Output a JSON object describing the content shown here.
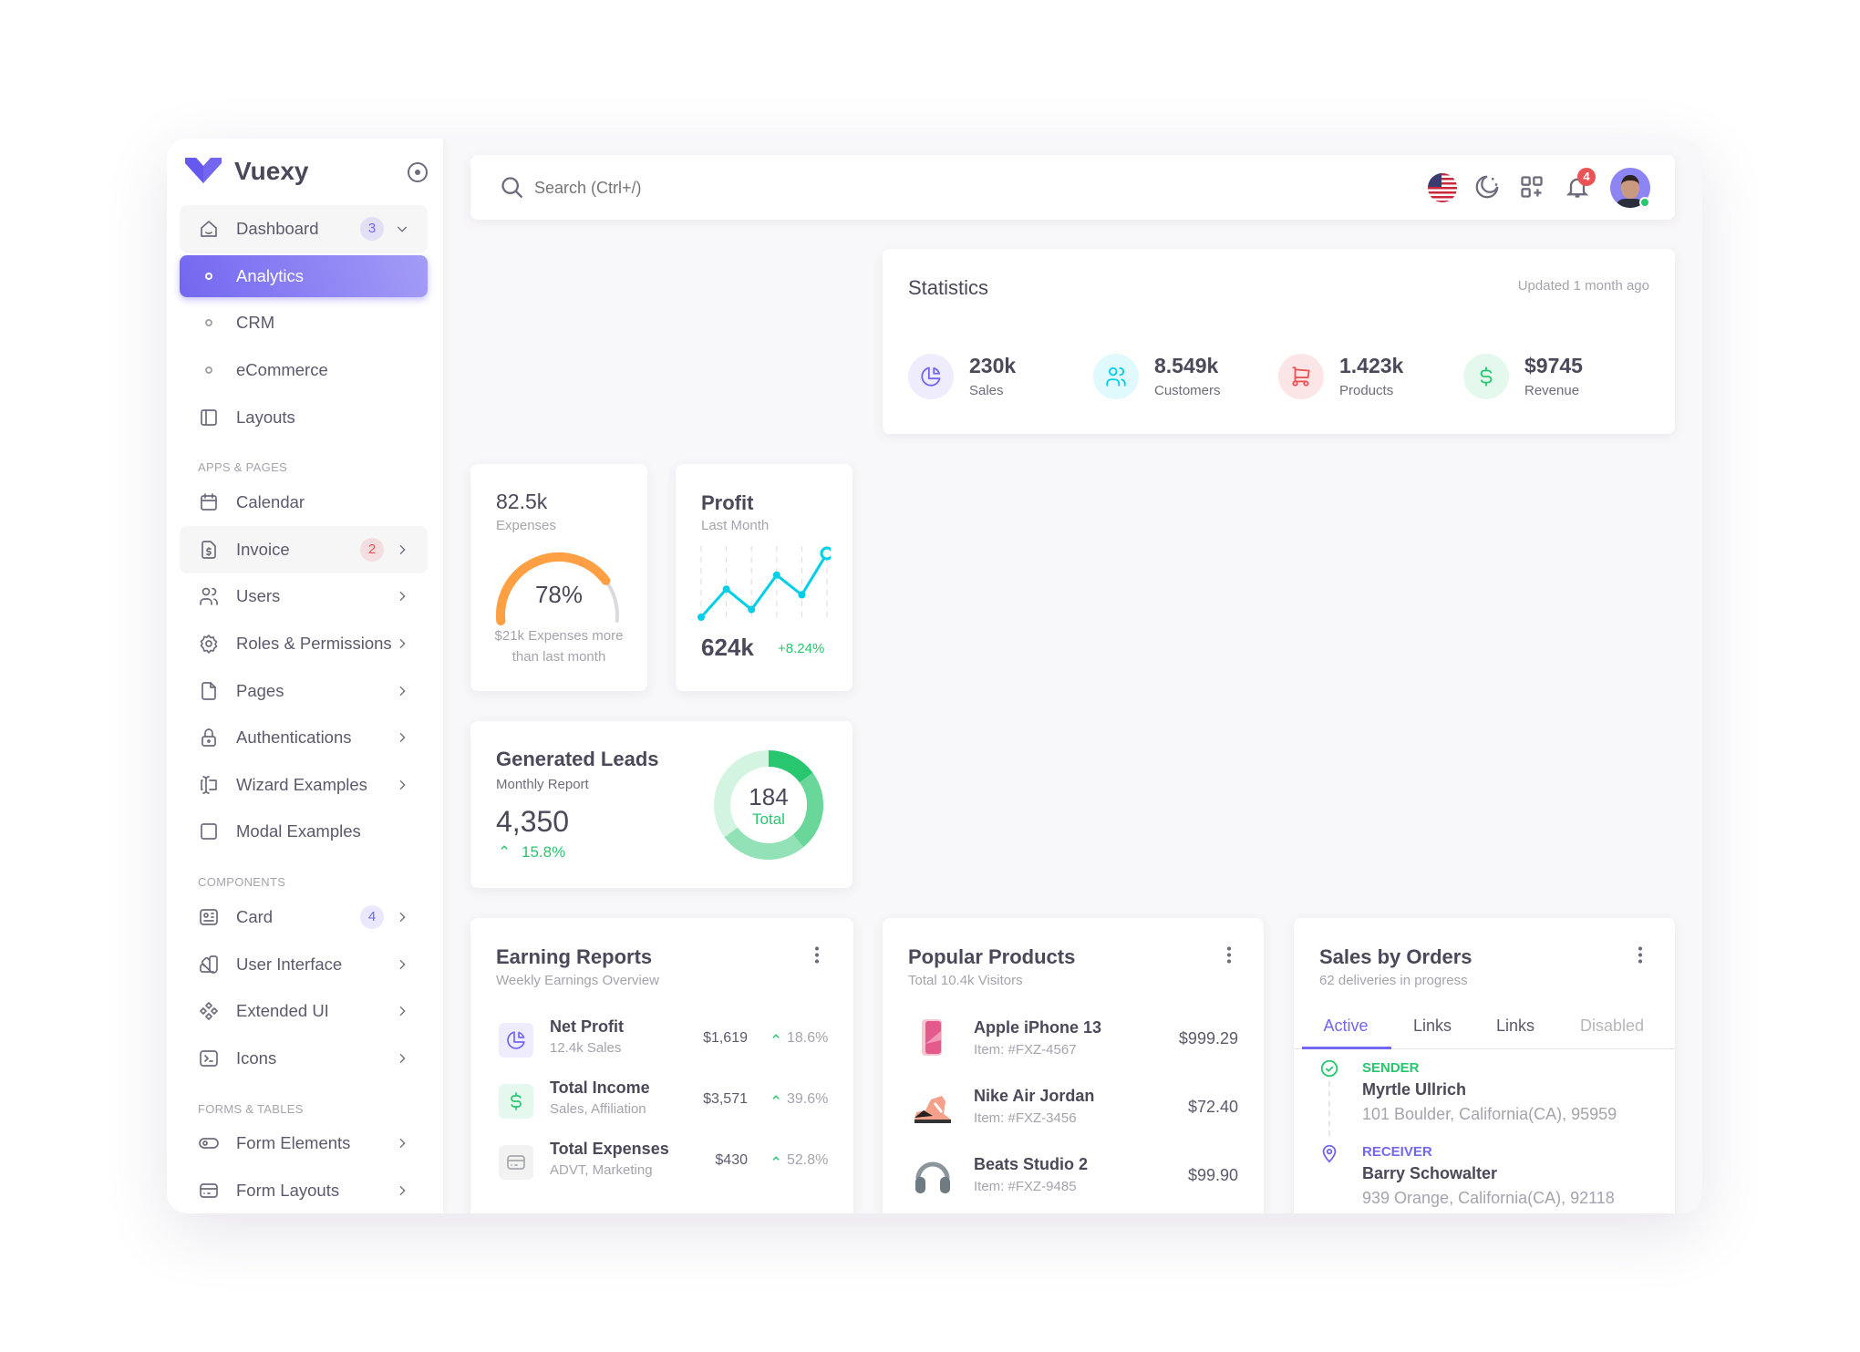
{
  "app": {
    "name": "Vuexy",
    "brand_color": "#7367f0"
  },
  "sidebar": {
    "sections": [
      {
        "header": "",
        "items": [
          {
            "label": "Dashboard",
            "icon": "smart-home-icon",
            "badge": "3",
            "badge_color": "#7367f0",
            "chevron": "down",
            "open": true
          },
          {
            "label": "Analytics",
            "icon": "circle",
            "active": true
          },
          {
            "label": "CRM",
            "icon": "circle"
          },
          {
            "label": "eCommerce",
            "icon": "circle"
          },
          {
            "label": "Layouts",
            "icon": "layout-sidebar-icon"
          }
        ]
      },
      {
        "header": "APPS & PAGES",
        "items": [
          {
            "label": "Calendar",
            "icon": "calendar-icon"
          },
          {
            "label": "Invoice",
            "icon": "file-dollar-icon",
            "badge": "2",
            "badge_color": "#ea5455",
            "chevron": "right",
            "open": true
          },
          {
            "label": "Users",
            "icon": "users-icon",
            "chevron": "right"
          },
          {
            "label": "Roles & Permissions",
            "icon": "settings-icon",
            "chevron": "right"
          },
          {
            "label": "Pages",
            "icon": "file-icon",
            "chevron": "right"
          },
          {
            "label": "Authentications",
            "icon": "lock-icon",
            "chevron": "right"
          },
          {
            "label": "Wizard Examples",
            "icon": "forms-icon",
            "chevron": "right"
          },
          {
            "label": "Modal Examples",
            "icon": "square-icon"
          }
        ]
      },
      {
        "header": "COMPONENTS",
        "items": [
          {
            "label": "Card",
            "icon": "id-card-icon",
            "badge": "4",
            "badge_color": "#7367f0",
            "chevron": "right"
          },
          {
            "label": "User Interface",
            "icon": "color-swatch-icon",
            "chevron": "right"
          },
          {
            "label": "Extended UI",
            "icon": "components-icon",
            "chevron": "right"
          },
          {
            "label": "Icons",
            "icon": "terminal-icon",
            "chevron": "right"
          }
        ]
      },
      {
        "header": "FORMS & TABLES",
        "items": [
          {
            "label": "Form Elements",
            "icon": "toggle-icon",
            "chevron": "right"
          },
          {
            "label": "Form Layouts",
            "icon": "credit-card-icon",
            "chevron": "right"
          }
        ]
      }
    ]
  },
  "navbar": {
    "search_placeholder": "Search (Ctrl+/)",
    "notifications": "4",
    "language": "en-us-flag-icon"
  },
  "statistics": {
    "title": "Statistics",
    "updated": "Updated 1 month ago",
    "items": [
      {
        "value": "230k",
        "label": "Sales",
        "icon": "chart-pie-icon",
        "color": "#7367f0",
        "bg": "#efedfd"
      },
      {
        "value": "8.549k",
        "label": "Customers",
        "icon": "users-icon",
        "color": "#00cfe8",
        "bg": "#e0f9fc"
      },
      {
        "value": "1.423k",
        "label": "Products",
        "icon": "shopping-cart-icon",
        "color": "#ea5455",
        "bg": "#fce5e6"
      },
      {
        "value": "$9745",
        "label": "Revenue",
        "icon": "currency-dollar-icon",
        "color": "#28c76f",
        "bg": "#e5f8ed"
      }
    ]
  },
  "expenses": {
    "value": "82.5k",
    "label": "Expenses",
    "percent": 78,
    "percent_label": "78%",
    "note_line1": "$21k Expenses more",
    "note_line2": "than last month",
    "color": "#ff9f43"
  },
  "profit": {
    "title": "Profit",
    "subtitle": "Last Month",
    "value": "624k",
    "change": "+8.24%",
    "color": "#00cfe8"
  },
  "leads": {
    "title": "Generated Leads",
    "subtitle": "Monthly Report",
    "value": "4,350",
    "change": "15.8%",
    "donut_value": "184",
    "donut_label": "Total"
  },
  "chart_data": [
    {
      "type": "line",
      "title": "Profit",
      "values": [
        0,
        0.44,
        0.12,
        0.66,
        0.35,
        1.0
      ],
      "grid": "vertical dashed"
    },
    {
      "type": "pie",
      "title": "Generated Leads",
      "values": [
        0.15,
        0.24,
        0.26,
        0.35
      ],
      "colors": [
        "#28c76f",
        "#6ad79a",
        "#93e2b7",
        "#d4f4e2"
      ],
      "center": "184 Total"
    },
    {
      "type": "gauge",
      "title": "Expenses",
      "value": 78,
      "max": 100
    }
  ],
  "earning": {
    "title": "Earning Reports",
    "subtitle": "Weekly Earnings Overview",
    "rows": [
      {
        "name": "Net Profit",
        "sub": "12.4k Sales",
        "amount": "$1,619",
        "change": "18.6%",
        "icon": "chart-pie-icon",
        "color": "#7367f0",
        "bg": "#efedfd"
      },
      {
        "name": "Total Income",
        "sub": "Sales, Affiliation",
        "amount": "$3,571",
        "change": "39.6%",
        "icon": "currency-dollar-icon",
        "color": "#28c76f",
        "bg": "#e5f8ed"
      },
      {
        "name": "Total Expenses",
        "sub": "ADVT, Marketing",
        "amount": "$430",
        "change": "52.8%",
        "icon": "credit-card-icon",
        "color": "#a8aaae",
        "bg": "#f2f2f3"
      }
    ]
  },
  "popular": {
    "title": "Popular Products",
    "subtitle": "Total 10.4k Visitors",
    "rows": [
      {
        "name": "Apple iPhone 13",
        "item": "Item: #FXZ-4567",
        "price": "$999.29",
        "image": "iphone-image"
      },
      {
        "name": "Nike Air Jordan",
        "item": "Item: #FXZ-3456",
        "price": "$72.40",
        "image": "shoe-image"
      },
      {
        "name": "Beats Studio 2",
        "item": "Item: #FXZ-9485",
        "price": "$99.90",
        "image": "headphones-image"
      }
    ]
  },
  "orders": {
    "title": "Sales by Orders",
    "subtitle": "62 deliveries in progress",
    "tabs": [
      "Active",
      "Links",
      "Links",
      "Disabled"
    ],
    "sender": {
      "label": "SENDER",
      "name": "Myrtle Ullrich",
      "address": "101 Boulder, California(CA), 95959"
    },
    "receiver": {
      "label": "RECEIVER",
      "name": "Barry Schowalter",
      "address": "939 Orange, California(CA), 92118"
    }
  }
}
